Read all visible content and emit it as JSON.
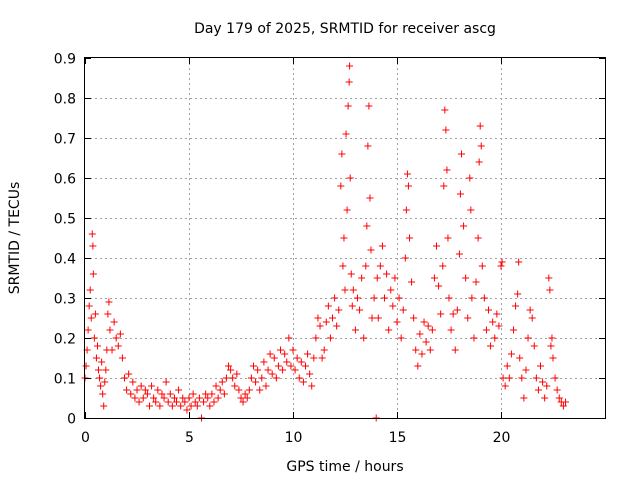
{
  "chart_data": {
    "type": "scatter",
    "title": "Day 179 of 2025, SRMTID for receiver ascg",
    "xlabel": "GPS time / hours",
    "ylabel": "SRMTID / TECUs",
    "xlim": [
      0,
      25
    ],
    "ylim": [
      0,
      0.9
    ],
    "xticks": [
      0,
      5,
      10,
      15,
      20
    ],
    "xtick_labels": [
      "0",
      "5",
      "10",
      "15",
      "20"
    ],
    "yticks": [
      0,
      0.1,
      0.2,
      0.3,
      0.4,
      0.5,
      0.6,
      0.7,
      0.8,
      0.9
    ],
    "ytick_labels": [
      "0",
      "0.1",
      "0.2",
      "0.3",
      "0.4",
      "0.5",
      "0.6",
      "0.7",
      "0.8",
      "0.9"
    ],
    "grid": true,
    "marker": "plus",
    "color": "#ff0000",
    "series": [
      {
        "name": "SRMTID",
        "points": [
          [
            0.0,
            0.1
          ],
          [
            0.05,
            0.13
          ],
          [
            0.1,
            0.17
          ],
          [
            0.15,
            0.22
          ],
          [
            0.2,
            0.28
          ],
          [
            0.25,
            0.32
          ],
          [
            0.3,
            0.25
          ],
          [
            0.35,
            0.46
          ],
          [
            0.38,
            0.43
          ],
          [
            0.4,
            0.36
          ],
          [
            0.45,
            0.2
          ],
          [
            0.5,
            0.26
          ],
          [
            0.55,
            0.15
          ],
          [
            0.6,
            0.18
          ],
          [
            0.65,
            0.12
          ],
          [
            0.7,
            0.1
          ],
          [
            0.75,
            0.08
          ],
          [
            0.8,
            0.14
          ],
          [
            0.85,
            0.06
          ],
          [
            0.9,
            0.03
          ],
          [
            0.95,
            0.09
          ],
          [
            1.0,
            0.12
          ],
          [
            1.05,
            0.17
          ],
          [
            1.1,
            0.26
          ],
          [
            1.15,
            0.29
          ],
          [
            1.2,
            0.22
          ],
          [
            1.3,
            0.17
          ],
          [
            1.4,
            0.24
          ],
          [
            1.5,
            0.2
          ],
          [
            1.6,
            0.18
          ],
          [
            1.7,
            0.21
          ],
          [
            1.8,
            0.15
          ],
          [
            1.9,
            0.1
          ],
          [
            2.0,
            0.07
          ],
          [
            2.1,
            0.11
          ],
          [
            2.2,
            0.06
          ],
          [
            2.3,
            0.09
          ],
          [
            2.4,
            0.05
          ],
          [
            2.5,
            0.07
          ],
          [
            2.6,
            0.04
          ],
          [
            2.7,
            0.08
          ],
          [
            2.8,
            0.05
          ],
          [
            2.9,
            0.07
          ],
          [
            3.0,
            0.06
          ],
          [
            3.1,
            0.03
          ],
          [
            3.2,
            0.08
          ],
          [
            3.3,
            0.05
          ],
          [
            3.4,
            0.04
          ],
          [
            3.5,
            0.07
          ],
          [
            3.6,
            0.03
          ],
          [
            3.7,
            0.06
          ],
          [
            3.8,
            0.05
          ],
          [
            3.9,
            0.09
          ],
          [
            4.0,
            0.04
          ],
          [
            4.1,
            0.06
          ],
          [
            4.2,
            0.03
          ],
          [
            4.3,
            0.05
          ],
          [
            4.4,
            0.04
          ],
          [
            4.5,
            0.07
          ],
          [
            4.6,
            0.03
          ],
          [
            4.7,
            0.05
          ],
          [
            4.8,
            0.04
          ],
          [
            4.9,
            0.02
          ],
          [
            5.0,
            0.05
          ],
          [
            5.1,
            0.03
          ],
          [
            5.2,
            0.06
          ],
          [
            5.3,
            0.04
          ],
          [
            5.4,
            0.03
          ],
          [
            5.5,
            0.05
          ],
          [
            5.6,
            0.0
          ],
          [
            5.7,
            0.04
          ],
          [
            5.8,
            0.06
          ],
          [
            5.9,
            0.05
          ],
          [
            6.0,
            0.03
          ],
          [
            6.1,
            0.06
          ],
          [
            6.2,
            0.04
          ],
          [
            6.3,
            0.08
          ],
          [
            6.4,
            0.05
          ],
          [
            6.5,
            0.07
          ],
          [
            6.6,
            0.09
          ],
          [
            6.7,
            0.06
          ],
          [
            6.8,
            0.1
          ],
          [
            6.9,
            0.13
          ],
          [
            7.0,
            0.12
          ],
          [
            7.1,
            0.1
          ],
          [
            7.2,
            0.08
          ],
          [
            7.3,
            0.11
          ],
          [
            7.4,
            0.07
          ],
          [
            7.5,
            0.05
          ],
          [
            7.6,
            0.04
          ],
          [
            7.7,
            0.06
          ],
          [
            7.8,
            0.05
          ],
          [
            7.9,
            0.07
          ],
          [
            8.0,
            0.1
          ],
          [
            8.1,
            0.13
          ],
          [
            8.2,
            0.09
          ],
          [
            8.3,
            0.12
          ],
          [
            8.4,
            0.07
          ],
          [
            8.5,
            0.1
          ],
          [
            8.6,
            0.14
          ],
          [
            8.7,
            0.08
          ],
          [
            8.8,
            0.12
          ],
          [
            8.9,
            0.16
          ],
          [
            9.0,
            0.11
          ],
          [
            9.1,
            0.15
          ],
          [
            9.2,
            0.1
          ],
          [
            9.3,
            0.13
          ],
          [
            9.4,
            0.17
          ],
          [
            9.5,
            0.12
          ],
          [
            9.6,
            0.16
          ],
          [
            9.7,
            0.14
          ],
          [
            9.8,
            0.2
          ],
          [
            9.9,
            0.13
          ],
          [
            10.0,
            0.17
          ],
          [
            10.1,
            0.12
          ],
          [
            10.2,
            0.15
          ],
          [
            10.3,
            0.1
          ],
          [
            10.4,
            0.14
          ],
          [
            10.5,
            0.09
          ],
          [
            10.6,
            0.13
          ],
          [
            10.7,
            0.16
          ],
          [
            10.8,
            0.11
          ],
          [
            10.9,
            0.08
          ],
          [
            11.0,
            0.15
          ],
          [
            11.1,
            0.2
          ],
          [
            11.2,
            0.25
          ],
          [
            11.3,
            0.23
          ],
          [
            11.4,
            0.15
          ],
          [
            11.5,
            0.17
          ],
          [
            11.6,
            0.24
          ],
          [
            11.7,
            0.28
          ],
          [
            11.8,
            0.2
          ],
          [
            11.9,
            0.25
          ],
          [
            12.0,
            0.3
          ],
          [
            12.1,
            0.23
          ],
          [
            12.2,
            0.27
          ],
          [
            12.3,
            0.58
          ],
          [
            12.35,
            0.66
          ],
          [
            12.4,
            0.38
          ],
          [
            12.45,
            0.45
          ],
          [
            12.5,
            0.32
          ],
          [
            12.55,
            0.71
          ],
          [
            12.6,
            0.52
          ],
          [
            12.65,
            0.78
          ],
          [
            12.7,
            0.84
          ],
          [
            12.72,
            0.88
          ],
          [
            12.75,
            0.6
          ],
          [
            12.8,
            0.36
          ],
          [
            12.85,
            0.28
          ],
          [
            12.9,
            0.32
          ],
          [
            13.0,
            0.22
          ],
          [
            13.1,
            0.3
          ],
          [
            13.2,
            0.27
          ],
          [
            13.3,
            0.35
          ],
          [
            13.4,
            0.2
          ],
          [
            13.5,
            0.38
          ],
          [
            13.55,
            0.48
          ],
          [
            13.6,
            0.68
          ],
          [
            13.65,
            0.78
          ],
          [
            13.7,
            0.55
          ],
          [
            13.75,
            0.42
          ],
          [
            13.8,
            0.25
          ],
          [
            13.9,
            0.3
          ],
          [
            14.0,
            0.0
          ],
          [
            14.05,
            0.35
          ],
          [
            14.1,
            0.25
          ],
          [
            14.2,
            0.38
          ],
          [
            14.3,
            0.43
          ],
          [
            14.4,
            0.3
          ],
          [
            14.5,
            0.36
          ],
          [
            14.6,
            0.22
          ],
          [
            14.7,
            0.32
          ],
          [
            14.8,
            0.28
          ],
          [
            14.9,
            0.35
          ],
          [
            15.0,
            0.24
          ],
          [
            15.1,
            0.3
          ],
          [
            15.2,
            0.2
          ],
          [
            15.3,
            0.27
          ],
          [
            15.4,
            0.4
          ],
          [
            15.45,
            0.52
          ],
          [
            15.5,
            0.61
          ],
          [
            15.55,
            0.58
          ],
          [
            15.6,
            0.45
          ],
          [
            15.7,
            0.34
          ],
          [
            15.8,
            0.25
          ],
          [
            15.9,
            0.17
          ],
          [
            16.0,
            0.13
          ],
          [
            16.1,
            0.21
          ],
          [
            16.2,
            0.16
          ],
          [
            16.3,
            0.24
          ],
          [
            16.4,
            0.19
          ],
          [
            16.5,
            0.23
          ],
          [
            16.6,
            0.17
          ],
          [
            16.7,
            0.22
          ],
          [
            16.8,
            0.35
          ],
          [
            16.9,
            0.43
          ],
          [
            17.0,
            0.33
          ],
          [
            17.1,
            0.26
          ],
          [
            17.2,
            0.38
          ],
          [
            17.25,
            0.58
          ],
          [
            17.3,
            0.77
          ],
          [
            17.35,
            0.72
          ],
          [
            17.4,
            0.62
          ],
          [
            17.45,
            0.45
          ],
          [
            17.5,
            0.3
          ],
          [
            17.6,
            0.22
          ],
          [
            17.7,
            0.26
          ],
          [
            17.8,
            0.17
          ],
          [
            17.9,
            0.27
          ],
          [
            18.0,
            0.41
          ],
          [
            18.05,
            0.56
          ],
          [
            18.1,
            0.66
          ],
          [
            18.2,
            0.48
          ],
          [
            18.3,
            0.35
          ],
          [
            18.4,
            0.25
          ],
          [
            18.5,
            0.6
          ],
          [
            18.55,
            0.52
          ],
          [
            18.6,
            0.3
          ],
          [
            18.7,
            0.2
          ],
          [
            18.8,
            0.34
          ],
          [
            18.9,
            0.45
          ],
          [
            18.95,
            0.64
          ],
          [
            19.0,
            0.73
          ],
          [
            19.05,
            0.68
          ],
          [
            19.1,
            0.38
          ],
          [
            19.2,
            0.3
          ],
          [
            19.3,
            0.22
          ],
          [
            19.4,
            0.27
          ],
          [
            19.5,
            0.18
          ],
          [
            19.6,
            0.24
          ],
          [
            19.7,
            0.2
          ],
          [
            19.8,
            0.26
          ],
          [
            19.9,
            0.23
          ],
          [
            20.0,
            0.38
          ],
          [
            20.05,
            0.39
          ],
          [
            20.1,
            0.1
          ],
          [
            20.2,
            0.08
          ],
          [
            20.3,
            0.13
          ],
          [
            20.4,
            0.1
          ],
          [
            20.5,
            0.16
          ],
          [
            20.6,
            0.22
          ],
          [
            20.7,
            0.28
          ],
          [
            20.8,
            0.31
          ],
          [
            20.85,
            0.39
          ],
          [
            20.9,
            0.15
          ],
          [
            21.0,
            0.1
          ],
          [
            21.1,
            0.05
          ],
          [
            21.2,
            0.12
          ],
          [
            21.3,
            0.2
          ],
          [
            21.4,
            0.27
          ],
          [
            21.5,
            0.25
          ],
          [
            21.6,
            0.18
          ],
          [
            21.7,
            0.1
          ],
          [
            21.8,
            0.07
          ],
          [
            21.9,
            0.13
          ],
          [
            22.0,
            0.09
          ],
          [
            22.1,
            0.05
          ],
          [
            22.2,
            0.08
          ],
          [
            22.3,
            0.35
          ],
          [
            22.35,
            0.32
          ],
          [
            22.4,
            0.18
          ],
          [
            22.45,
            0.2
          ],
          [
            22.5,
            0.15
          ],
          [
            22.6,
            0.1
          ],
          [
            22.7,
            0.07
          ],
          [
            22.8,
            0.05
          ],
          [
            22.9,
            0.04
          ],
          [
            23.0,
            0.03
          ],
          [
            23.1,
            0.04
          ]
        ]
      }
    ]
  }
}
